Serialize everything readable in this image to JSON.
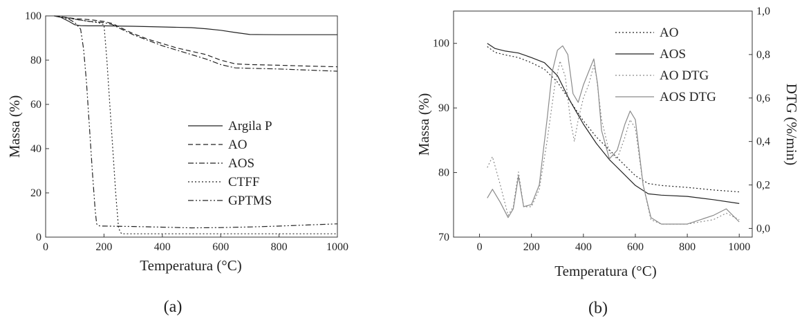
{
  "chart_data": [
    {
      "panel_label": "(a)",
      "type": "line",
      "xlabel": "Temperatura (°C)",
      "ylabel": "Massa (%)",
      "xlim": [
        0,
        1000
      ],
      "ylim": [
        0,
        100
      ],
      "xticks": [
        0,
        200,
        400,
        600,
        800,
        1000
      ],
      "yticks": [
        0,
        20,
        40,
        60,
        80,
        100
      ],
      "legend_position": "center-right",
      "series": [
        {
          "name": "Argila P",
          "dash": "solid",
          "x": [
            30,
            50,
            80,
            100,
            120,
            150,
            200,
            300,
            400,
            500,
            550,
            600,
            650,
            700,
            800,
            900,
            1000
          ],
          "y": [
            100,
            99.5,
            97.5,
            96,
            95.6,
            95.5,
            95.5,
            95.3,
            95,
            94.7,
            94.2,
            93.5,
            92.5,
            91.6,
            91.5,
            91.5,
            91.5
          ]
        },
        {
          "name": "AO",
          "dash": "dash",
          "x": [
            30,
            60,
            100,
            150,
            200,
            230,
            260,
            300,
            350,
            400,
            450,
            500,
            550,
            600,
            650,
            700,
            800,
            900,
            1000
          ],
          "y": [
            100,
            99.5,
            98.8,
            98.3,
            97.5,
            96.5,
            94.5,
            92,
            89.5,
            87.5,
            85.5,
            84,
            82.5,
            80,
            78.3,
            78,
            77.7,
            77.3,
            77
          ]
        },
        {
          "name": "AOS",
          "dash": "dashdot",
          "x": [
            30,
            60,
            100,
            150,
            200,
            230,
            260,
            300,
            350,
            400,
            450,
            500,
            550,
            600,
            650,
            700,
            800,
            900,
            1000
          ],
          "y": [
            100,
            99.5,
            98.5,
            97.5,
            97,
            96,
            94,
            91.5,
            89,
            86.5,
            84.5,
            82.5,
            80.5,
            78,
            76.5,
            76.3,
            76,
            75.5,
            75
          ]
        },
        {
          "name": "CTFF",
          "dash": "dot",
          "x": [
            30,
            100,
            150,
            180,
            200,
            210,
            220,
            230,
            240,
            250,
            260,
            300,
            400,
            600,
            800,
            1000
          ],
          "y": [
            100,
            98.5,
            97.5,
            97,
            96,
            80,
            60,
            40,
            20,
            4,
            1.5,
            1.5,
            1.5,
            1.5,
            1.5,
            1.5
          ]
        },
        {
          "name": "GPTMS",
          "dash": "dashdotdot",
          "x": [
            30,
            80,
            100,
            120,
            130,
            140,
            150,
            160,
            170,
            175,
            180,
            190,
            200,
            300,
            400,
            500,
            600,
            700,
            800,
            900,
            1000
          ],
          "y": [
            100,
            98.5,
            97,
            94,
            85,
            70,
            50,
            30,
            12,
            6,
            5.2,
            5,
            5,
            4.8,
            4.5,
            4.2,
            4.3,
            4.6,
            5,
            5.5,
            6
          ]
        }
      ]
    },
    {
      "panel_label": "(b)",
      "type": "line",
      "xlabel": "Temperatura (°C)",
      "ylabel": "Massa (%)",
      "y2label": "DTG (%/min)",
      "xlim": [
        -100,
        1050
      ],
      "ylim": [
        70,
        105
      ],
      "y2lim": [
        -0.04,
        1.0
      ],
      "xticks": [
        0,
        200,
        400,
        600,
        800,
        1000
      ],
      "yticks": [
        70,
        80,
        90,
        100
      ],
      "y2ticks": [
        "0,0",
        "0,2",
        "0,4",
        "0,6",
        "0,8",
        "1,0"
      ],
      "y2tick_values": [
        0.0,
        0.2,
        0.4,
        0.6,
        0.8,
        1.0
      ],
      "legend_position": "top-right",
      "series": [
        {
          "name": "AO",
          "axis": "left",
          "dash": "dot",
          "color": "#222222",
          "x": [
            30,
            60,
            100,
            150,
            200,
            250,
            300,
            350,
            400,
            450,
            500,
            550,
            600,
            650,
            700,
            800,
            900,
            1000
          ],
          "y": [
            99.5,
            98.6,
            98.2,
            97.8,
            97,
            96,
            94,
            91,
            88,
            85.5,
            83.5,
            81.5,
            79.5,
            78.3,
            78,
            77.7,
            77.3,
            77
          ]
        },
        {
          "name": "AOS",
          "axis": "left",
          "dash": "solid",
          "color": "#222222",
          "x": [
            30,
            60,
            100,
            150,
            200,
            250,
            300,
            350,
            400,
            450,
            500,
            550,
            600,
            650,
            700,
            800,
            900,
            1000
          ],
          "y": [
            100,
            99.2,
            98.8,
            98.5,
            97.8,
            97,
            95,
            91,
            87.5,
            84.5,
            82,
            80,
            78,
            76.7,
            76.5,
            76.3,
            75.8,
            75.2
          ]
        },
        {
          "name": "AO DTG",
          "axis": "right",
          "dash": "dot",
          "color": "#8a8a8a",
          "x": [
            30,
            50,
            80,
            110,
            130,
            150,
            170,
            200,
            230,
            260,
            290,
            310,
            330,
            350,
            365,
            380,
            400,
            420,
            440,
            450,
            470,
            500,
            530,
            560,
            580,
            600,
            630,
            660,
            700,
            800,
            900,
            950,
            1000
          ],
          "y": [
            0.28,
            0.33,
            0.2,
            0.06,
            0.1,
            0.26,
            0.1,
            0.1,
            0.18,
            0.4,
            0.66,
            0.77,
            0.7,
            0.5,
            0.4,
            0.5,
            0.6,
            0.66,
            0.75,
            0.7,
            0.5,
            0.35,
            0.32,
            0.42,
            0.5,
            0.46,
            0.2,
            0.04,
            0.02,
            0.02,
            0.04,
            0.07,
            0.04
          ]
        },
        {
          "name": "AOS DTG",
          "axis": "right",
          "dash": "solid",
          "color": "#8a8a8a",
          "x": [
            30,
            50,
            80,
            110,
            130,
            150,
            170,
            200,
            230,
            260,
            280,
            300,
            320,
            340,
            360,
            380,
            400,
            420,
            440,
            455,
            470,
            500,
            530,
            560,
            580,
            600,
            630,
            660,
            700,
            800,
            900,
            950,
            1000
          ],
          "y": [
            0.14,
            0.18,
            0.12,
            0.05,
            0.09,
            0.24,
            0.1,
            0.11,
            0.2,
            0.5,
            0.72,
            0.82,
            0.84,
            0.8,
            0.62,
            0.58,
            0.66,
            0.72,
            0.78,
            0.66,
            0.45,
            0.32,
            0.36,
            0.48,
            0.54,
            0.5,
            0.2,
            0.05,
            0.02,
            0.02,
            0.06,
            0.09,
            0.03
          ]
        }
      ]
    }
  ]
}
